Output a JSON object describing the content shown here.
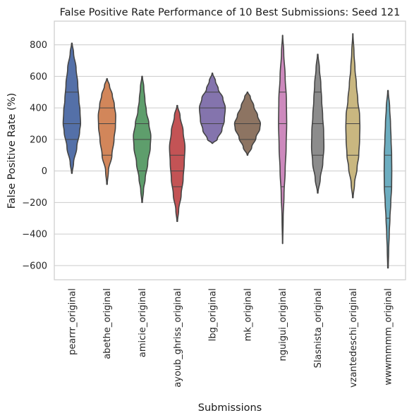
{
  "chart_data": {
    "type": "violin",
    "title": "False Positive Rate Performance of 10 Best Submissions: Seed 121",
    "xlabel": "Submissions",
    "ylabel": "False Positive Rate (%)",
    "ylim": [
      -690,
      950
    ],
    "yticks": [
      800,
      600,
      400,
      200,
      0,
      -200,
      -400,
      -600
    ],
    "ytick_labels": [
      "800",
      "600",
      "400",
      "200",
      "0",
      "−200",
      "−400",
      "−600"
    ],
    "grid": true,
    "inner": "quartile",
    "categories": [
      "pearrr_original",
      "abethe_original",
      "amicie_original",
      "ayoub_ghriss_original",
      "lbg_original",
      "mk_original",
      "nguigui_original",
      "Slasnista_original",
      "vzantedeschi_original",
      "wwwmmmm_original"
    ],
    "colors": [
      "#5470a8",
      "#d2865a",
      "#5e9e6c",
      "#c35355",
      "#8474ad",
      "#8d7462",
      "#cd89bd",
      "#8c8c8c",
      "#c9b780",
      "#6cadc0"
    ],
    "series": [
      {
        "min": -15,
        "max": 810,
        "q1": 200,
        "median": 300,
        "q3": 500,
        "profile": [
          [
            -15,
            0.02
          ],
          [
            50,
            0.12
          ],
          [
            150,
            0.35
          ],
          [
            250,
            0.55
          ],
          [
            300,
            0.62
          ],
          [
            380,
            0.58
          ],
          [
            450,
            0.5
          ],
          [
            550,
            0.42
          ],
          [
            650,
            0.3
          ],
          [
            750,
            0.12
          ],
          [
            810,
            0.02
          ]
        ]
      },
      {
        "min": -85,
        "max": 585,
        "q1": 100,
        "median": 300,
        "q3": 400,
        "profile": [
          [
            -85,
            0.02
          ],
          [
            0,
            0.1
          ],
          [
            100,
            0.35
          ],
          [
            200,
            0.5
          ],
          [
            280,
            0.6
          ],
          [
            350,
            0.62
          ],
          [
            420,
            0.52
          ],
          [
            480,
            0.38
          ],
          [
            540,
            0.18
          ],
          [
            585,
            0.02
          ]
        ]
      },
      {
        "min": -200,
        "max": 600,
        "q1": 0,
        "median": 200,
        "q3": 300,
        "profile": [
          [
            -200,
            0.02
          ],
          [
            -120,
            0.1
          ],
          [
            -50,
            0.22
          ],
          [
            50,
            0.4
          ],
          [
            150,
            0.58
          ],
          [
            220,
            0.62
          ],
          [
            300,
            0.48
          ],
          [
            380,
            0.3
          ],
          [
            450,
            0.2
          ],
          [
            530,
            0.12
          ],
          [
            600,
            0.02
          ]
        ]
      },
      {
        "min": -320,
        "max": 415,
        "q1": -100,
        "median": 0,
        "q3": 100,
        "profile": [
          [
            -320,
            0.02
          ],
          [
            -250,
            0.1
          ],
          [
            -150,
            0.28
          ],
          [
            -50,
            0.42
          ],
          [
            50,
            0.5
          ],
          [
            150,
            0.55
          ],
          [
            250,
            0.42
          ],
          [
            350,
            0.2
          ],
          [
            415,
            0.02
          ]
        ]
      },
      {
        "min": 175,
        "max": 620,
        "q1": 300,
        "median": 400,
        "q3": 500,
        "profile": [
          [
            175,
            0.02
          ],
          [
            200,
            0.35
          ],
          [
            260,
            0.68
          ],
          [
            320,
            0.85
          ],
          [
            400,
            0.92
          ],
          [
            460,
            0.75
          ],
          [
            520,
            0.42
          ],
          [
            570,
            0.22
          ],
          [
            620,
            0.02
          ]
        ]
      },
      {
        "min": 100,
        "max": 500,
        "q1": 200,
        "median": 300,
        "q3": 300,
        "profile": [
          [
            100,
            0.02
          ],
          [
            150,
            0.3
          ],
          [
            210,
            0.6
          ],
          [
            270,
            0.88
          ],
          [
            300,
            0.92
          ],
          [
            350,
            0.72
          ],
          [
            410,
            0.45
          ],
          [
            470,
            0.2
          ],
          [
            500,
            0.02
          ]
        ]
      },
      {
        "min": -460,
        "max": 860,
        "q1": -100,
        "median": 300,
        "q3": 500,
        "profile": [
          [
            -460,
            0.01
          ],
          [
            -300,
            0.04
          ],
          [
            -150,
            0.1
          ],
          [
            0,
            0.18
          ],
          [
            150,
            0.25
          ],
          [
            300,
            0.29
          ],
          [
            450,
            0.27
          ],
          [
            600,
            0.18
          ],
          [
            750,
            0.08
          ],
          [
            860,
            0.01
          ]
        ]
      },
      {
        "min": -140,
        "max": 740,
        "q1": 100,
        "median": 300,
        "q3": 500,
        "profile": [
          [
            -140,
            0.02
          ],
          [
            -50,
            0.18
          ],
          [
            50,
            0.36
          ],
          [
            150,
            0.44
          ],
          [
            250,
            0.42
          ],
          [
            350,
            0.35
          ],
          [
            450,
            0.28
          ],
          [
            550,
            0.22
          ],
          [
            650,
            0.12
          ],
          [
            740,
            0.02
          ]
        ]
      },
      {
        "min": -170,
        "max": 870,
        "q1": 100,
        "median": 300,
        "q3": 400,
        "profile": [
          [
            -170,
            0.02
          ],
          [
            -80,
            0.12
          ],
          [
            20,
            0.3
          ],
          [
            100,
            0.42
          ],
          [
            200,
            0.48
          ],
          [
            280,
            0.5
          ],
          [
            350,
            0.48
          ],
          [
            450,
            0.35
          ],
          [
            550,
            0.25
          ],
          [
            650,
            0.15
          ],
          [
            750,
            0.08
          ],
          [
            870,
            0.01
          ]
        ]
      },
      {
        "min": -615,
        "max": 510,
        "q1": -300,
        "median": -100,
        "q3": 100,
        "profile": [
          [
            -615,
            0.02
          ],
          [
            -500,
            0.05
          ],
          [
            -400,
            0.09
          ],
          [
            -300,
            0.14
          ],
          [
            -200,
            0.2
          ],
          [
            -100,
            0.26
          ],
          [
            0,
            0.27
          ],
          [
            100,
            0.26
          ],
          [
            200,
            0.22
          ],
          [
            300,
            0.18
          ],
          [
            400,
            0.12
          ],
          [
            510,
            0.02
          ]
        ]
      }
    ]
  }
}
